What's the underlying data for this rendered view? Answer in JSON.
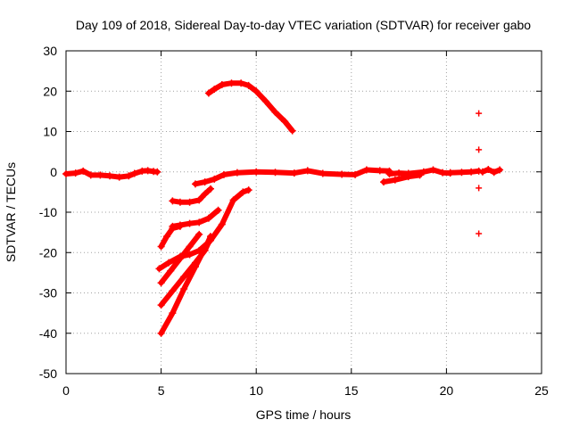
{
  "chart_data": {
    "type": "scatter",
    "title": "Day 109 of 2018, Sidereal Day-to-day VTEC variation (SDTVAR) for receiver gabo",
    "xlabel": "GPS time / hours",
    "ylabel": "SDTVAR / TECUs",
    "xlim": [
      0,
      25
    ],
    "ylim": [
      -50,
      30
    ],
    "xticks": [
      0,
      5,
      10,
      15,
      20,
      25
    ],
    "yticks": [
      30,
      20,
      10,
      0,
      -10,
      -20,
      -30,
      -40,
      -50
    ],
    "xtick_labels": [
      "0",
      "5",
      "10",
      "15",
      "20",
      "25"
    ],
    "ytick_labels": [
      "30",
      "20",
      "10",
      "0",
      "-10",
      "-20",
      "-30",
      "-40",
      "-50"
    ],
    "grid": true,
    "marker": "+",
    "color": "#ff0000",
    "series": [
      {
        "name": "arc-near-zero-early",
        "points": [
          [
            0.0,
            -0.5
          ],
          [
            0.5,
            -0.3
          ],
          [
            0.9,
            0.2
          ],
          [
            1.3,
            -0.8
          ],
          [
            1.8,
            -0.8
          ],
          [
            2.3,
            -1.0
          ],
          [
            2.8,
            -1.3
          ],
          [
            3.3,
            -1.0
          ],
          [
            3.6,
            -0.4
          ],
          [
            4.0,
            0.2
          ],
          [
            4.3,
            0.3
          ],
          [
            4.6,
            0.1
          ],
          [
            4.8,
            0.0
          ]
        ]
      },
      {
        "name": "arc-dome",
        "points": [
          [
            7.5,
            19.5
          ],
          [
            7.8,
            20.5
          ],
          [
            8.2,
            21.6
          ],
          [
            8.7,
            22.0
          ],
          [
            9.2,
            22.0
          ],
          [
            9.6,
            21.4
          ],
          [
            10.0,
            20.0
          ],
          [
            10.5,
            17.5
          ],
          [
            11.0,
            14.8
          ],
          [
            11.5,
            12.5
          ],
          [
            11.9,
            10.2
          ]
        ]
      },
      {
        "name": "arc-near-zero-main",
        "points": [
          [
            6.8,
            -3.0
          ],
          [
            7.3,
            -2.5
          ],
          [
            7.8,
            -1.8
          ],
          [
            8.3,
            -0.7
          ],
          [
            9.0,
            -0.2
          ],
          [
            10.0,
            0.0
          ],
          [
            11.0,
            -0.1
          ],
          [
            12.0,
            -0.3
          ],
          [
            12.7,
            0.3
          ],
          [
            13.5,
            -0.4
          ],
          [
            14.5,
            -0.6
          ],
          [
            15.2,
            -0.7
          ],
          [
            15.8,
            0.5
          ],
          [
            16.5,
            0.3
          ],
          [
            17.0,
            0.2
          ]
        ]
      },
      {
        "name": "arc-near-zero-late",
        "points": [
          [
            17.0,
            -0.5
          ],
          [
            17.5,
            -0.3
          ],
          [
            18.0,
            -0.4
          ],
          [
            18.8,
            0.0
          ],
          [
            19.3,
            0.5
          ],
          [
            19.8,
            -0.2
          ],
          [
            20.2,
            -0.3
          ]
        ]
      },
      {
        "name": "arc-dip-late",
        "points": [
          [
            16.7,
            -2.5
          ],
          [
            17.3,
            -2.0
          ],
          [
            18.0,
            -1.2
          ],
          [
            18.6,
            -0.8
          ]
        ]
      },
      {
        "name": "arc-end",
        "points": [
          [
            20.2,
            -0.2
          ],
          [
            20.8,
            -0.1
          ],
          [
            21.3,
            0.0
          ],
          [
            21.7,
            0.2
          ]
        ]
      },
      {
        "name": "arc-cluster",
        "points": [
          [
            21.9,
            0.0
          ],
          [
            22.2,
            0.6
          ],
          [
            22.5,
            -0.1
          ],
          [
            22.8,
            0.5
          ]
        ]
      },
      {
        "name": "arc-minus7",
        "points": [
          [
            5.6,
            -7.2
          ],
          [
            6.0,
            -7.5
          ],
          [
            6.5,
            -7.5
          ],
          [
            7.0,
            -7.0
          ],
          [
            7.3,
            -5.5
          ],
          [
            7.6,
            -4.2
          ]
        ]
      },
      {
        "name": "arc-minus13",
        "points": [
          [
            5.6,
            -13.5
          ],
          [
            6.0,
            -13.2
          ],
          [
            6.5,
            -12.8
          ],
          [
            7.0,
            -12.5
          ],
          [
            7.5,
            -11.5
          ],
          [
            8.0,
            -9.5
          ]
        ]
      },
      {
        "name": "arc-minus18",
        "points": [
          [
            5.0,
            -18.5
          ],
          [
            5.3,
            -16.0
          ],
          [
            5.6,
            -14.0
          ],
          [
            6.0,
            -13.5
          ]
        ]
      },
      {
        "name": "arc-minus24",
        "points": [
          [
            4.9,
            -24.0
          ],
          [
            5.4,
            -22.5
          ],
          [
            6.0,
            -21.0
          ],
          [
            6.5,
            -20.5
          ],
          [
            7.0,
            -19.5
          ],
          [
            7.6,
            -17.0
          ],
          [
            8.2,
            -13.0
          ],
          [
            8.8,
            -7.0
          ],
          [
            9.3,
            -5.0
          ],
          [
            9.6,
            -4.5
          ]
        ]
      },
      {
        "name": "arc-minus27",
        "points": [
          [
            5.0,
            -27.5
          ],
          [
            5.5,
            -24.5
          ],
          [
            6.0,
            -21.5
          ],
          [
            6.5,
            -18.5
          ],
          [
            7.0,
            -15.5
          ]
        ]
      },
      {
        "name": "arc-minus33",
        "points": [
          [
            5.0,
            -33.0
          ],
          [
            5.6,
            -29.5
          ],
          [
            6.2,
            -26.0
          ],
          [
            6.8,
            -22.5
          ],
          [
            7.3,
            -19.5
          ],
          [
            7.6,
            -16.5
          ]
        ]
      },
      {
        "name": "arc-minus40",
        "points": [
          [
            5.0,
            -40.0
          ],
          [
            5.6,
            -35.0
          ],
          [
            6.2,
            -29.0
          ],
          [
            6.8,
            -23.5
          ],
          [
            7.4,
            -18.0
          ],
          [
            7.6,
            -16.0
          ]
        ]
      },
      {
        "name": "isolated-plus-21.7",
        "points": [
          [
            21.7,
            14.5
          ],
          [
            21.7,
            5.5
          ],
          [
            21.7,
            -4.0
          ],
          [
            21.7,
            -15.3
          ]
        ]
      }
    ]
  }
}
